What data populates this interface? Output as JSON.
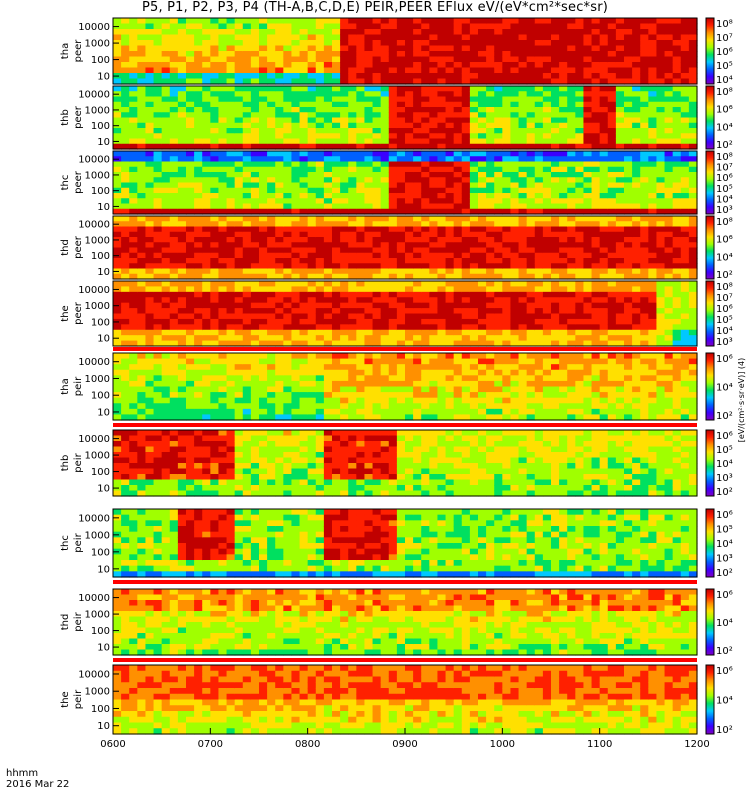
{
  "title": "P5, P1, P2, P3, P4 (TH-A,B,C,D,E) PEIR,PEER EFlux eV/(eV*cm²*sec*sr)",
  "footer": {
    "line1": "hhmm",
    "line2": "2016 Mar 22"
  },
  "colorbar_unit": "[eV/(cm²·s·sr·eV)] (4)",
  "colormap": [
    "#7f00c0",
    "#3a00ff",
    "#0060ff",
    "#00c8ff",
    "#00e060",
    "#a0ff00",
    "#ffe000",
    "#ff9000",
    "#ff2000",
    "#c00000"
  ],
  "chart_data": [
    {
      "type": "heatmap",
      "ylabel": "tha\npeer",
      "yticks": [
        "10000",
        "1000",
        "100",
        "10"
      ],
      "cbar_ticks": [
        "10⁸",
        "10⁷",
        "10⁶",
        "10⁵",
        "10⁴"
      ],
      "xlim": [
        "0600",
        "1200"
      ]
    },
    {
      "type": "heatmap",
      "ylabel": "thb\npeer",
      "yticks": [
        "10000",
        "1000",
        "100",
        "10"
      ],
      "cbar_ticks": [
        "10⁸",
        "10⁶",
        "10⁴",
        "10²"
      ],
      "xlim": [
        "0600",
        "1200"
      ]
    },
    {
      "type": "heatmap",
      "ylabel": "thc\npeer",
      "yticks": [
        "10000",
        "1000",
        "100",
        "10"
      ],
      "cbar_ticks": [
        "10⁸",
        "10⁷",
        "10⁶",
        "10⁵",
        "10⁴",
        "10³"
      ],
      "xlim": [
        "0600",
        "1200"
      ]
    },
    {
      "type": "heatmap",
      "ylabel": "thd\npeer",
      "yticks": [
        "10000",
        "1000",
        "100",
        "10"
      ],
      "cbar_ticks": [
        "10⁸",
        "10⁶",
        "10⁴",
        "10²"
      ],
      "xlim": [
        "0600",
        "1200"
      ]
    },
    {
      "type": "heatmap",
      "ylabel": "the\npeer",
      "yticks": [
        "10000",
        "1000",
        "100",
        "10"
      ],
      "cbar_ticks": [
        "10⁸",
        "10⁷",
        "10⁶",
        "10⁵",
        "10⁴",
        "10³"
      ],
      "xlim": [
        "0600",
        "1200"
      ]
    },
    {
      "type": "heatmap",
      "ylabel": "tha\npeir",
      "yticks": [
        "10000",
        "1000",
        "100",
        "10"
      ],
      "cbar_ticks": [
        "10⁶",
        "10⁴",
        "10²"
      ],
      "xlim": [
        "0600",
        "1200"
      ]
    },
    {
      "type": "heatmap",
      "ylabel": "thb\npeir",
      "yticks": [
        "10000",
        "1000",
        "100",
        "10"
      ],
      "cbar_ticks": [
        "10⁶",
        "10⁵",
        "10⁴",
        "10³",
        "10²"
      ],
      "xlim": [
        "0600",
        "1200"
      ]
    },
    {
      "type": "heatmap",
      "ylabel": "thc\npeir",
      "yticks": [
        "10000",
        "1000",
        "100",
        "10"
      ],
      "cbar_ticks": [
        "10⁶",
        "10⁵",
        "10⁴",
        "10³",
        "10²"
      ],
      "xlim": [
        "0600",
        "1200"
      ]
    },
    {
      "type": "heatmap",
      "ylabel": "thd\npeir",
      "yticks": [
        "10000",
        "1000",
        "100",
        "10"
      ],
      "cbar_ticks": [
        "10⁶",
        "10⁴",
        "10²"
      ],
      "xlim": [
        "0600",
        "1200"
      ]
    },
    {
      "type": "heatmap",
      "ylabel": "the\npeir",
      "yticks": [
        "10000",
        "1000",
        "100",
        "10"
      ],
      "cbar_ticks": [
        "10⁶",
        "10⁴",
        "10²"
      ],
      "xlim": [
        "0600",
        "1200"
      ]
    }
  ],
  "xticks": [
    "0600",
    "0700",
    "0800",
    "0900",
    "1000",
    "1100",
    "1200"
  ]
}
